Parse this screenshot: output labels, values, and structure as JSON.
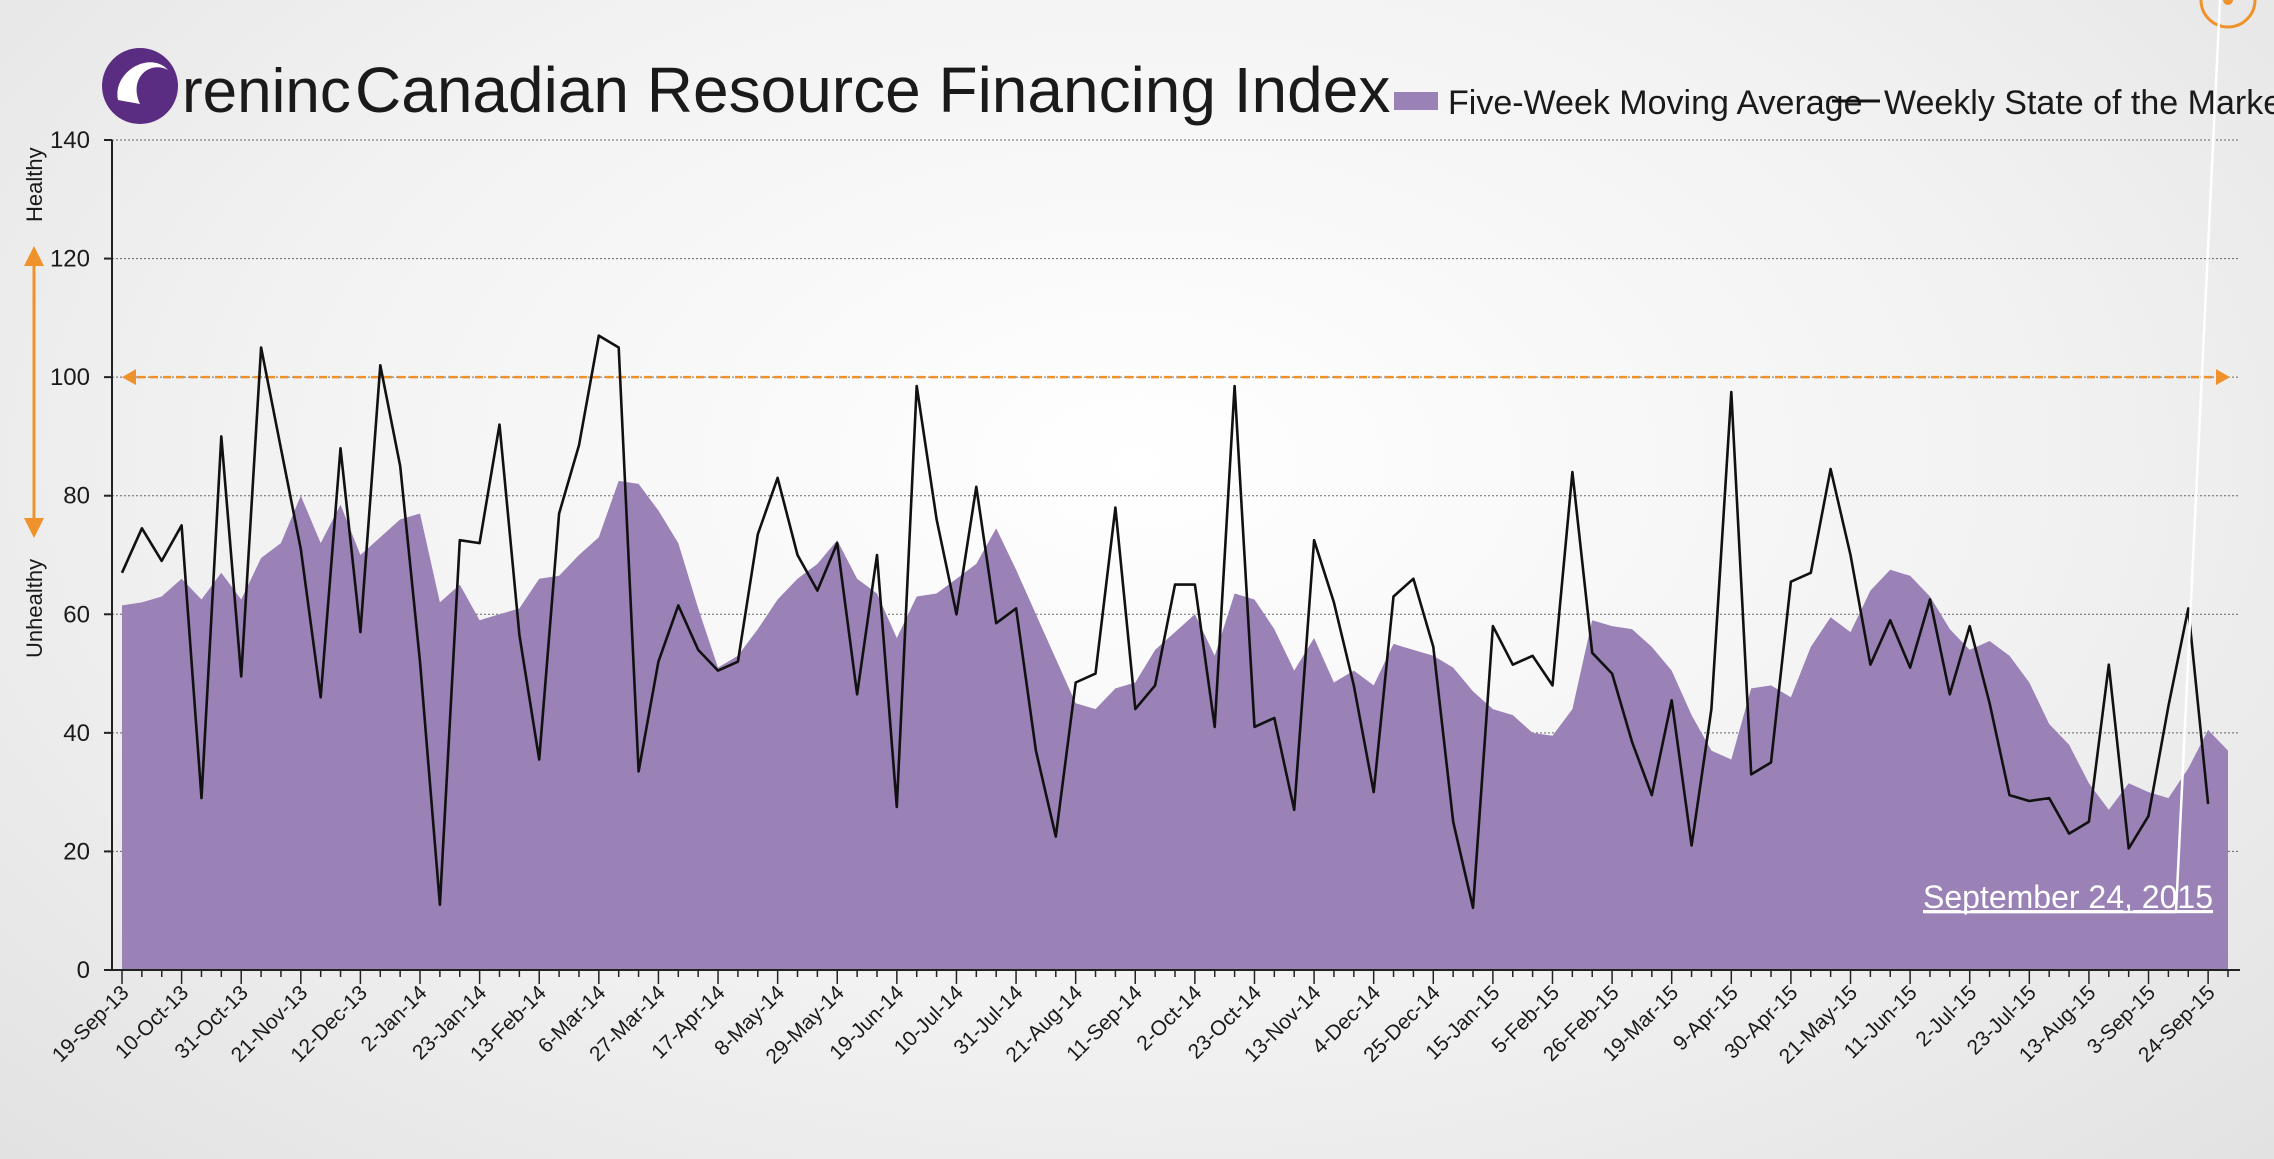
{
  "brand": {
    "name": "reninc",
    "title": "Canadian Resource Financing Index"
  },
  "colors": {
    "area": "#9a82b6",
    "line": "#111111",
    "reference": "#f0922b",
    "grid": "#444444",
    "logo": "#5b2d82"
  },
  "side_labels": {
    "top": "Healthy",
    "bottom": "Unhealthy"
  },
  "callout": {
    "label": "September 24, 2015"
  },
  "chart_data": {
    "type": "area",
    "ylim": [
      0,
      140
    ],
    "yticks": [
      0,
      20,
      40,
      60,
      80,
      100,
      120,
      140
    ],
    "grid": true,
    "legend_position": "top-right",
    "reference_line": 100,
    "xtick_labels": [
      "19-Sep-13",
      "10-Oct-13",
      "31-Oct-13",
      "21-Nov-13",
      "12-Dec-13",
      "2-Jan-14",
      "23-Jan-14",
      "13-Feb-14",
      "6-Mar-14",
      "27-Mar-14",
      "17-Apr-14",
      "8-May-14",
      "29-May-14",
      "19-Jun-14",
      "10-Jul-14",
      "31-Jul-14",
      "21-Aug-14",
      "11-Sep-14",
      "2-Oct-14",
      "23-Oct-14",
      "13-Nov-14",
      "4-Dec-14",
      "25-Dec-14",
      "15-Jan-15",
      "5-Feb-15",
      "26-Feb-15",
      "19-Mar-15",
      "9-Apr-15",
      "30-Apr-15",
      "21-May-15",
      "11-Jun-15",
      "2-Jul-15",
      "23-Jul-15",
      "13-Aug-15",
      "3-Sep-15",
      "24-Sep-15"
    ],
    "series": [
      {
        "name": "Five-Week Moving Average",
        "kind": "area",
        "values": [
          61.5,
          62,
          63,
          66,
          62.5,
          67,
          62.5,
          69.5,
          72,
          80,
          72,
          78.5,
          70,
          73,
          76,
          77,
          62,
          65,
          59,
          60,
          61,
          66,
          66.5,
          70,
          73,
          82.5,
          82,
          77.5,
          72,
          61,
          51,
          53,
          57.5,
          62.5,
          66,
          68.5,
          72.5,
          66,
          63.5,
          56,
          63,
          63.5,
          66,
          68.5,
          74.5,
          67.5,
          60,
          52.5,
          45,
          44,
          47.5,
          48.5,
          54,
          57,
          60,
          53,
          63.5,
          62.5,
          57.5,
          50.5,
          56,
          48.5,
          50.5,
          48,
          55,
          54,
          53,
          51,
          47,
          44,
          43,
          40,
          39.5,
          44,
          59,
          58,
          57.5,
          54.5,
          50.5,
          43,
          37,
          35.5,
          47.5,
          48,
          46,
          54.5,
          59.5,
          57,
          64,
          67.5,
          66.5,
          63,
          57.5,
          54,
          55.5,
          53,
          48.5,
          41.5,
          38,
          31.5,
          27,
          31.5,
          30,
          29,
          34,
          40.5,
          37
        ]
      },
      {
        "name": "Weekly State of the Market",
        "kind": "line",
        "values": [
          67,
          74.5,
          69,
          75,
          29,
          90,
          49.5,
          105,
          88,
          71,
          46,
          88,
          57,
          102,
          85,
          52,
          11,
          72.5,
          72,
          92,
          56.5,
          35.5,
          77,
          88.5,
          107,
          105,
          33.5,
          52,
          61.5,
          54,
          50.5,
          52,
          73.5,
          83,
          70,
          64,
          72,
          46.5,
          70,
          27.5,
          98.5,
          76,
          60,
          81.5,
          58.5,
          61,
          37,
          22.5,
          48.5,
          50,
          78,
          44,
          48,
          65,
          65,
          41,
          98.5,
          41,
          42.5,
          27,
          72.5,
          62,
          48,
          30,
          63,
          66,
          54.5,
          25,
          10.5,
          58,
          51.5,
          53,
          48,
          84,
          53.5,
          50,
          38.5,
          29.5,
          45.5,
          21,
          44,
          97.5,
          33,
          35,
          65.5,
          67,
          84.5,
          70,
          51.5,
          59,
          51,
          62.5,
          46.5,
          58,
          45,
          29.5,
          28.5,
          29,
          23,
          25,
          51.5,
          20.5,
          26,
          44.5,
          61,
          28
        ]
      }
    ]
  }
}
